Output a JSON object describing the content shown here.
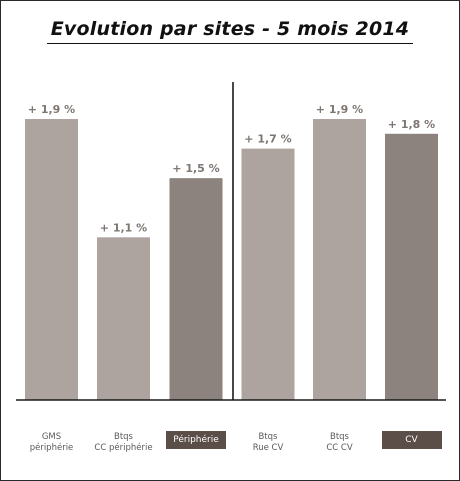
{
  "chart_data": {
    "type": "bar",
    "title": "Evolution par sites - 5 mois 2014",
    "categories": [
      [
        "GMS",
        "périphérie"
      ],
      [
        "Btqs",
        "CC périphérie"
      ],
      [
        "Périphérie"
      ],
      [
        "Btqs",
        "Rue CV"
      ],
      [
        "Btqs",
        "CC CV"
      ],
      [
        "CV"
      ]
    ],
    "values": [
      1.9,
      1.1,
      1.5,
      1.7,
      1.9,
      1.8
    ],
    "data_labels": [
      "+ 1,9 %",
      "+ 1,1 %",
      "+ 1,5 %",
      "+ 1,7 %",
      "+ 1,9 %",
      "+ 1,8 %"
    ],
    "total_categories": [
      "Périphérie",
      "CV"
    ],
    "ylim": [
      0,
      1.9
    ],
    "grid": false,
    "legend": "none",
    "colors": {
      "bar": "#ada49f",
      "bar_total": "#8c837e",
      "label": "#7e7671",
      "total_label_bg": "#5b4d48",
      "axis": "#1a1a1a"
    }
  }
}
